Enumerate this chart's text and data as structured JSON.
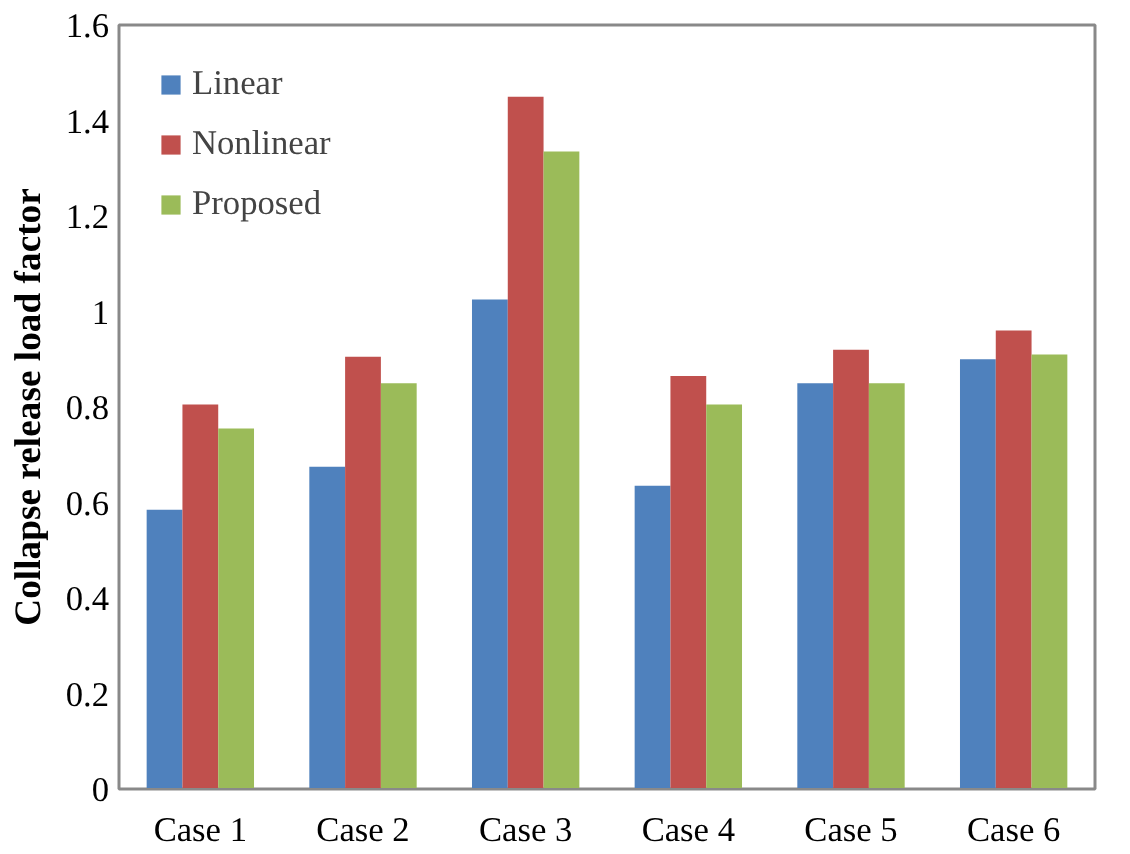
{
  "chart_data": {
    "type": "bar",
    "ylabel": "Collapse release load factor",
    "categories": [
      "Case 1",
      "Case 2",
      "Case 3",
      "Case 4",
      "Case 5",
      "Case 6"
    ],
    "series": [
      {
        "name": "Linear",
        "color": "#4f81bd",
        "values": [
          0.585,
          0.675,
          1.025,
          0.635,
          0.85,
          0.9
        ]
      },
      {
        "name": "Nonlinear",
        "color": "#c0504d",
        "values": [
          0.805,
          0.905,
          1.45,
          0.865,
          0.92,
          0.96
        ]
      },
      {
        "name": "Proposed",
        "color": "#9bbb59",
        "values": [
          0.755,
          0.85,
          1.335,
          0.805,
          0.85,
          0.91
        ]
      }
    ],
    "ylim": [
      0,
      1.6
    ],
    "yticks": [
      0,
      0.2,
      0.4,
      0.6,
      0.8,
      1,
      1.2,
      1.4,
      1.6
    ],
    "grid": false,
    "legend": "top left"
  }
}
